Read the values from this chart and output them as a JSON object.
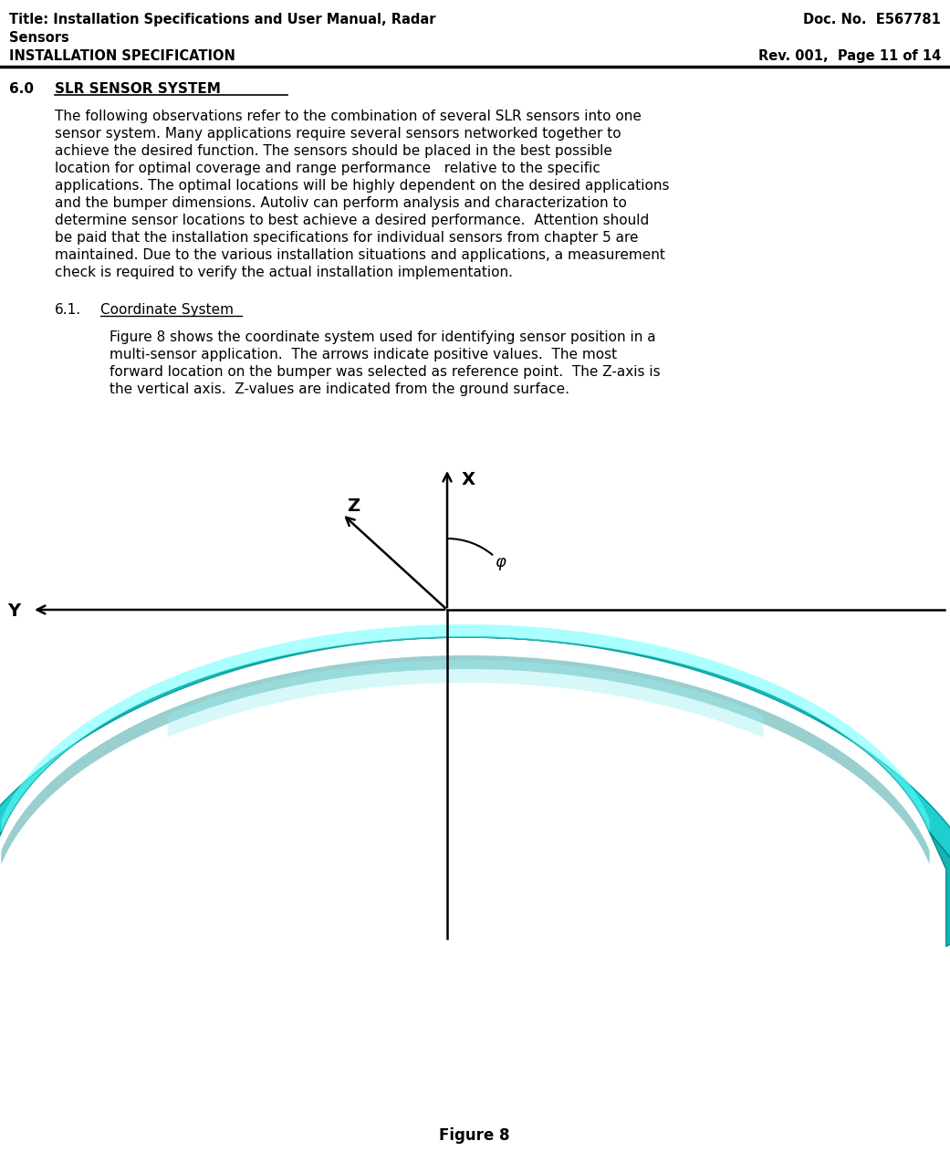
{
  "header_left_line1": "Title: Installation Specifications and User Manual, Radar",
  "header_left_line2": "Sensors",
  "header_left_line3": "INSTALLATION SPECIFICATION",
  "header_right_line1": "Doc. No.  E567781",
  "header_right_line3": "Rev. 001,  Page 11 of 14",
  "section_num": "6.0",
  "section_title_text": "SLR SENSOR SYSTEM",
  "body_paragraph": "The following observations refer to the combination of several SLR sensors into one\nsensor system. Many applications require several sensors networked together to\nachieve the desired function. The sensors should be placed in the best possible\nlocation for optimal coverage and range performance   relative to the specific\napplications. The optimal locations will be highly dependent on the desired applications\nand the bumper dimensions. Autoliv can perform analysis and characterization to\ndetermine sensor locations to best achieve a desired performance.  Attention should\nbe paid that the installation specifications for individual sensors from chapter 5 are\nmaintained. Due to the various installation situations and applications, a measurement\ncheck is required to verify the actual installation implementation.",
  "subsection_num": "6.1.",
  "subsection_title": "Coordinate System",
  "subsection_body": "Figure 8 shows the coordinate system used for identifying sensor position in a\nmulti-sensor application.  The arrows indicate positive values.  The most\nforward location on the bumper was selected as reference point.  The Z-axis is\nthe vertical axis.  Z-values are indicated from the ground surface.",
  "figure_caption": "Figure 8",
  "bg_color": "#ffffff",
  "text_color": "#000000",
  "axis_label_X": "X",
  "axis_label_Y": "Y",
  "axis_label_Z": "Z",
  "axis_label_phi": "φ"
}
